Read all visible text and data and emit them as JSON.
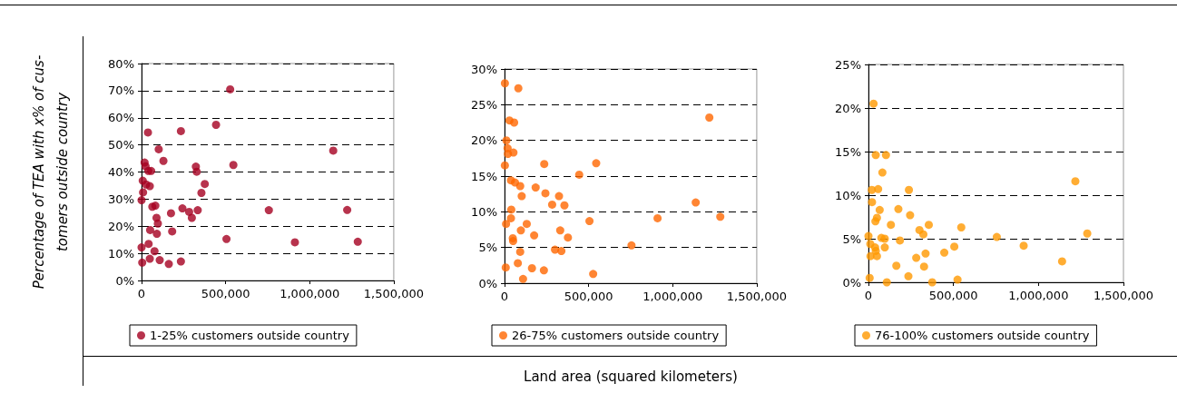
{
  "chart_data": [
    {
      "type": "scatter",
      "ylabel": "Percentage of TEA with x% of cus-\ntomers outside country",
      "marker": "circle",
      "grid": "y",
      "legend": "bottom",
      "xlim": [
        0,
        1500000
      ],
      "xticks": [
        {
          "value": 0,
          "label": "0"
        },
        {
          "value": 500000,
          "label": "500,000"
        },
        {
          "value": 1000000,
          "label": "1,000,000"
        },
        {
          "value": 1500000,
          "label": "1,500,000"
        }
      ],
      "ylim": [
        0,
        80
      ],
      "yticks": [
        {
          "value": 0,
          "label": "0%"
        },
        {
          "value": 10,
          "label": "10%"
        },
        {
          "value": 20,
          "label": "20%"
        },
        {
          "value": 30,
          "label": "30%"
        },
        {
          "value": 40,
          "label": "40%"
        },
        {
          "value": 50,
          "label": "50%"
        },
        {
          "value": 60,
          "label": "60%"
        },
        {
          "value": 70,
          "label": "70%"
        },
        {
          "value": 80,
          "label": "80%"
        }
      ],
      "series": [
        {
          "name": "1-25% customers outside country",
          "color": "#a50021",
          "x": [
            527000,
            443000,
            38000,
            234000,
            1140000,
            102000,
            130000,
            18000,
            24000,
            546000,
            323000,
            328000,
            40000,
            57000,
            7000,
            376000,
            27000,
            49000,
            9000,
            356000,
            0,
            64000,
            82000,
            243000,
            283000,
            334000,
            757000,
            1223000,
            175000,
            299000,
            89000,
            97000,
            51000,
            182000,
            91000,
            505000,
            912000,
            1286000,
            42000,
            0,
            77000,
            49000,
            108000,
            4000,
            162000,
            234000
          ],
          "values": [
            70.5,
            57.4,
            54.6,
            55.1,
            47.9,
            48.4,
            44.1,
            43.5,
            42.1,
            42.6,
            42.0,
            40.1,
            40.4,
            40.4,
            36.8,
            35.6,
            35.4,
            34.8,
            32.5,
            32.3,
            29.6,
            27.2,
            27.6,
            26.6,
            25.3,
            25.9,
            25.9,
            26.0,
            24.8,
            23.1,
            23.1,
            21.0,
            18.6,
            18.1,
            17.2,
            15.3,
            14.1,
            14.3,
            13.5,
            12.2,
            10.8,
            8.0,
            7.5,
            6.6,
            6.1,
            7.0
          ]
        }
      ]
    },
    {
      "type": "scatter",
      "xlabel": "Land area (squared kilometers)",
      "marker": "circle",
      "grid": "y",
      "legend": "bottom",
      "xlim": [
        0,
        1500000
      ],
      "xticks": [
        {
          "value": 0,
          "label": "0"
        },
        {
          "value": 500000,
          "label": "500,000"
        },
        {
          "value": 1000000,
          "label": "1,000,000"
        },
        {
          "value": 1500000,
          "label": "1,500,000"
        }
      ],
      "ylim": [
        0,
        30
      ],
      "yticks": [
        {
          "value": 0,
          "label": "0%"
        },
        {
          "value": 5,
          "label": "5%"
        },
        {
          "value": 10,
          "label": "10%"
        },
        {
          "value": 15,
          "label": "15%"
        },
        {
          "value": 20,
          "label": "20%"
        },
        {
          "value": 25,
          "label": "25%"
        },
        {
          "value": 30,
          "label": "30%"
        }
      ],
      "series": [
        {
          "name": "26-75% customers outside country",
          "color": "#ff6600",
          "x": [
            2000,
            82000,
            29000,
            57000,
            1218000,
            11000,
            18000,
            20000,
            53000,
            2000,
            236000,
            545000,
            444000,
            38000,
            62000,
            93000,
            185000,
            102000,
            243000,
            324000,
            283000,
            356000,
            1137000,
            40000,
            38000,
            910000,
            1283000,
            505000,
            9000,
            132000,
            97000,
            331000,
            176000,
            49000,
            51000,
            377000,
            755000,
            300000,
            338000,
            93000,
            79000,
            7000,
            163000,
            234000,
            527000,
            110000
          ],
          "values": [
            28.0,
            27.3,
            22.8,
            22.5,
            23.2,
            20.0,
            18.9,
            18.1,
            18.3,
            16.5,
            16.7,
            16.8,
            15.2,
            14.4,
            14.1,
            13.6,
            13.4,
            12.2,
            12.6,
            12.2,
            11.0,
            10.9,
            11.3,
            10.3,
            9.1,
            9.1,
            9.3,
            8.7,
            8.3,
            8.3,
            7.4,
            7.4,
            6.7,
            6.3,
            5.9,
            6.4,
            5.3,
            4.7,
            4.5,
            4.4,
            2.8,
            2.2,
            2.1,
            1.8,
            1.3,
            0.6
          ]
        }
      ]
    },
    {
      "type": "scatter",
      "marker": "circle",
      "grid": "y",
      "legend": "bottom",
      "xlim": [
        0,
        1500000
      ],
      "xticks": [
        {
          "value": 0,
          "label": "0"
        },
        {
          "value": 500000,
          "label": "500,000"
        },
        {
          "value": 1000000,
          "label": "1,000,000"
        },
        {
          "value": 1500000,
          "label": "1,500,000"
        }
      ],
      "ylim": [
        0,
        25
      ],
      "yticks": [
        {
          "value": 0,
          "label": "0%"
        },
        {
          "value": 5,
          "label": "5%"
        },
        {
          "value": 10,
          "label": "10%"
        },
        {
          "value": 15,
          "label": "15%"
        },
        {
          "value": 20,
          "label": "20%"
        },
        {
          "value": 25,
          "label": "25%"
        }
      ],
      "series": [
        {
          "name": "76-100% customers outside country",
          "color": "#ff9900",
          "x": [
            30000,
            43000,
            103000,
            82000,
            20000,
            57000,
            238000,
            1217000,
            21000,
            66000,
            176000,
            245000,
            50000,
            41000,
            132000,
            355000,
            546000,
            300000,
            1287000,
            323000,
            0,
            755000,
            76000,
            96000,
            185000,
            11000,
            96000,
            39000,
            913000,
            505000,
            43000,
            446000,
            336000,
            12000,
            50000,
            281000,
            1139000,
            164000,
            327000,
            235000,
            7000,
            524000,
            108000,
            375000
          ],
          "values": [
            20.5,
            14.6,
            14.6,
            12.6,
            10.6,
            10.7,
            10.6,
            11.6,
            9.2,
            8.3,
            8.4,
            7.7,
            7.4,
            7.0,
            6.6,
            6.6,
            6.3,
            6.0,
            5.6,
            5.5,
            5.3,
            5.2,
            5.1,
            5.0,
            4.8,
            4.4,
            4.0,
            4.0,
            4.2,
            4.1,
            3.6,
            3.4,
            3.3,
            3.0,
            3.0,
            2.8,
            2.4,
            1.9,
            1.8,
            0.7,
            0.5,
            0.3,
            0,
            0
          ]
        }
      ]
    }
  ]
}
